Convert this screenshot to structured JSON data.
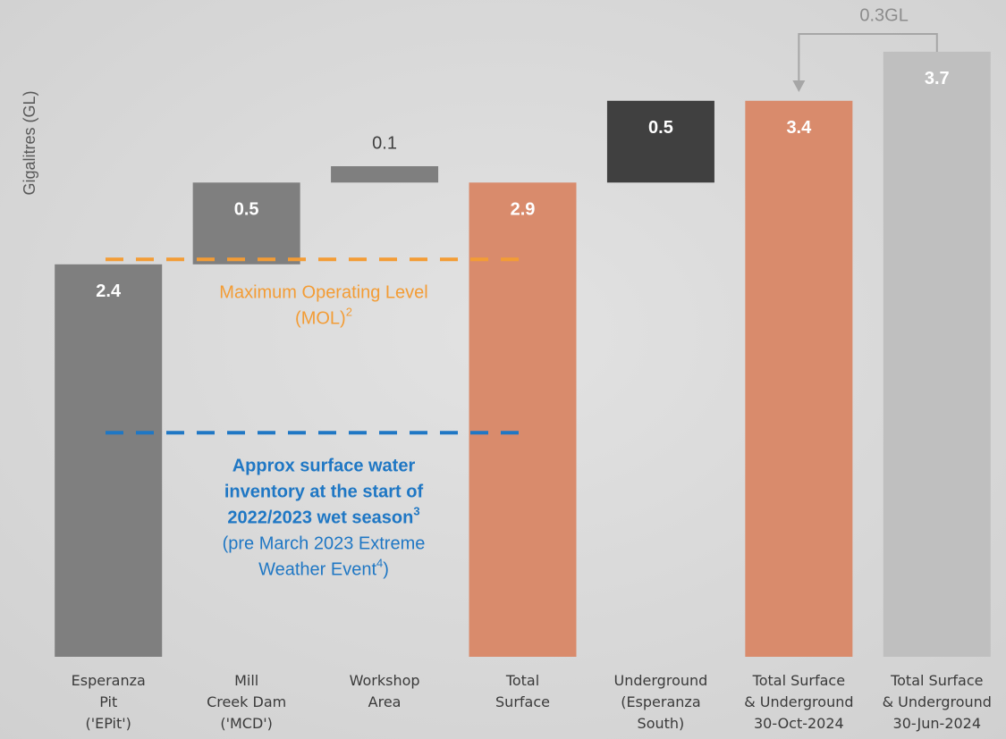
{
  "chart_data": {
    "type": "waterfall",
    "y_label": "Gigalitres (GL)",
    "categories": [
      "Esperanza\nPit\n('EPit')",
      "Mill\nCreek Dam\n('MCD')",
      "Workshop\nArea",
      "Total\nSurface",
      "Underground\n(Esperanza\nSouth)",
      "Total Surface\n& Underground\n30-Oct-2024",
      "Total Surface\n& Underground\n30-Jun-2024"
    ],
    "values": [
      2.4,
      0.5,
      0.1,
      2.9,
      0.5,
      3.4,
      3.7
    ],
    "is_total": [
      true,
      false,
      false,
      true,
      false,
      true,
      true
    ],
    "colors": [
      "#7f7f7f",
      "#7f7f7f",
      "#7f7f7f",
      "#d98b6c",
      "#404040",
      "#d98b6c",
      "#bfbfbf"
    ],
    "label_inside": [
      true,
      true,
      false,
      true,
      true,
      true,
      true
    ],
    "ylim": [
      0,
      4
    ],
    "reference_lines": [
      {
        "value": 2.43,
        "color": "#f39c35",
        "label_lines": [
          "Maximum Operating Level",
          "(MOL)"
        ],
        "footnote": "2"
      },
      {
        "value": 1.37,
        "color": "#1f77c4",
        "bold_lines": [
          "Approx surface water",
          "inventory at the start of",
          "2022/2023 wet season"
        ],
        "bold_footnote": "3",
        "label_lines": [
          "(pre March 2023 Extreme",
          "Weather Event"
        ],
        "footnote": "4",
        "closing": ")"
      }
    ],
    "transfer_label": "0.3GL"
  }
}
